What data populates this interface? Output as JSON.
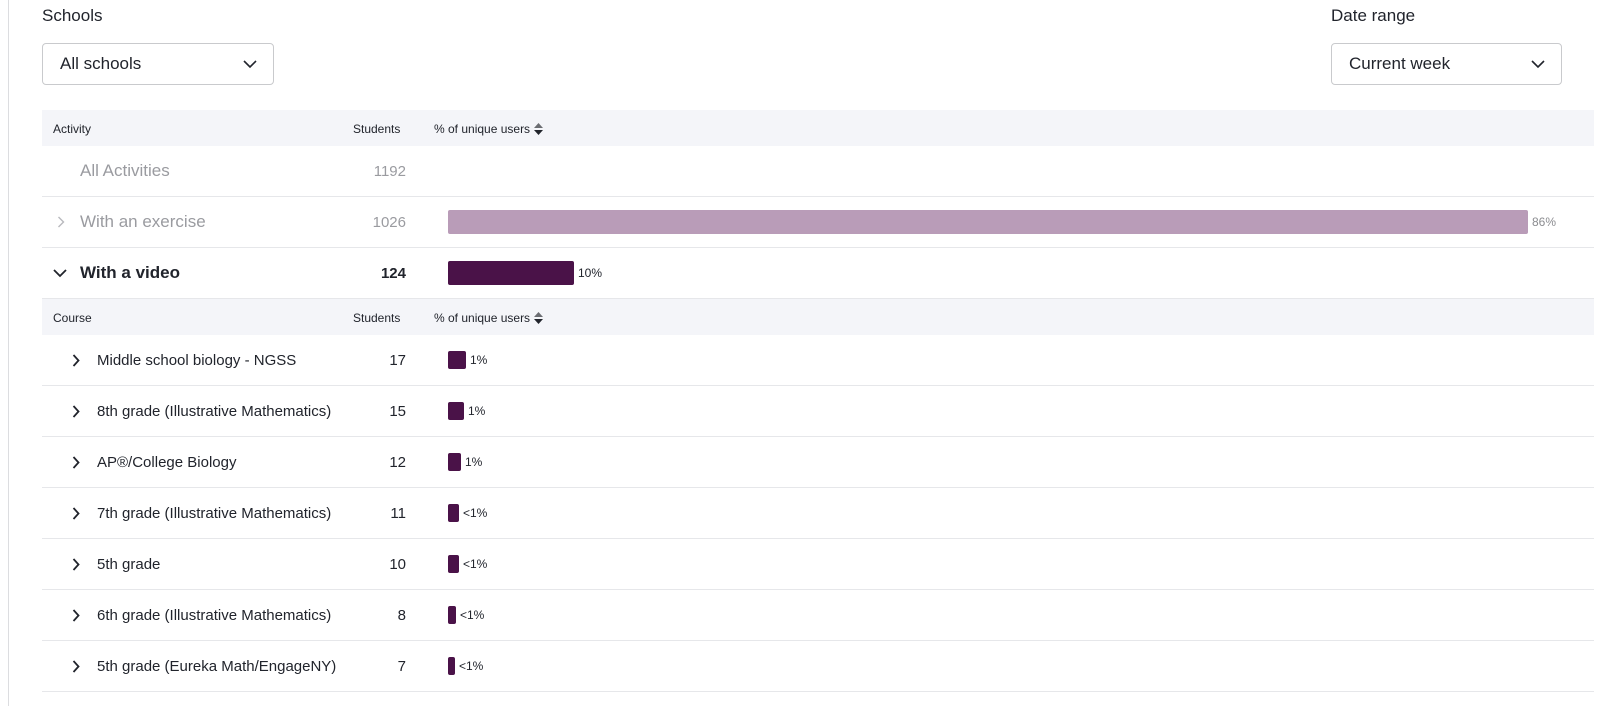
{
  "filters": {
    "schools": {
      "label": "Schools",
      "value": "All schools"
    },
    "date_range": {
      "label": "Date range",
      "value": "Current week"
    }
  },
  "activity_table": {
    "headers": {
      "activity": "Activity",
      "students": "Students",
      "percent": "% of unique users"
    },
    "rows": [
      {
        "name": "All Activities",
        "students": "1192",
        "percent": "",
        "fraction": 0
      },
      {
        "name": "With an exercise",
        "students": "1026",
        "percent": "86%",
        "fraction": 0.86
      },
      {
        "name": "With a video",
        "students": "124",
        "percent": "10%",
        "fraction": 0.1
      }
    ]
  },
  "course_table": {
    "headers": {
      "course": "Course",
      "students": "Students",
      "percent": "% of unique users"
    },
    "rows": [
      {
        "name": "Middle school biology - NGSS",
        "students": "17",
        "percent": "1%",
        "fraction": 0.014
      },
      {
        "name": "8th grade (Illustrative Mathematics)",
        "students": "15",
        "percent": "1%",
        "fraction": 0.0125
      },
      {
        "name": "AP®/College Biology",
        "students": "12",
        "percent": "1%",
        "fraction": 0.01
      },
      {
        "name": "7th grade (Illustrative Mathematics)",
        "students": "11",
        "percent": "<1%",
        "fraction": 0.009
      },
      {
        "name": "5th grade",
        "students": "10",
        "percent": "<1%",
        "fraction": 0.0084
      },
      {
        "name": "6th grade (Illustrative Mathematics)",
        "students": "8",
        "percent": "<1%",
        "fraction": 0.0067
      },
      {
        "name": "5th grade (Eureka Math/EngageNY)",
        "students": "7",
        "percent": "<1%",
        "fraction": 0.0059
      }
    ]
  },
  "colors": {
    "bar": "#4a1248",
    "bar_muted": "#b99cb8",
    "header_bg": "#f4f5f9"
  }
}
